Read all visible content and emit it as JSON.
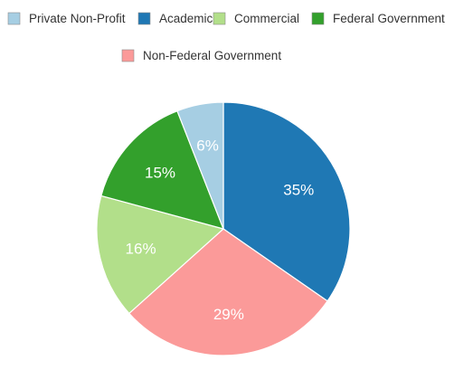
{
  "chart_data": {
    "type": "pie",
    "title": "",
    "legend_position": "top",
    "start_angle_deg": 0,
    "direction": "clockwise",
    "slices": [
      {
        "name": "Academic",
        "value": 35,
        "label": "35%",
        "color": "#1f78b4"
      },
      {
        "name": "Non-Federal Government",
        "value": 29,
        "label": "29%",
        "color": "#fb9a99"
      },
      {
        "name": "Commercial",
        "value": 16,
        "label": "16%",
        "color": "#b2df8a"
      },
      {
        "name": "Federal Government",
        "value": 15,
        "label": "15%",
        "color": "#33a02c"
      },
      {
        "name": "Private Non-Profit",
        "value": 6,
        "label": "6%",
        "color": "#a6cee3"
      }
    ],
    "legend_order": [
      "Private Non-Profit",
      "Academic",
      "Commercial",
      "Federal Government",
      "Non-Federal Government"
    ]
  }
}
